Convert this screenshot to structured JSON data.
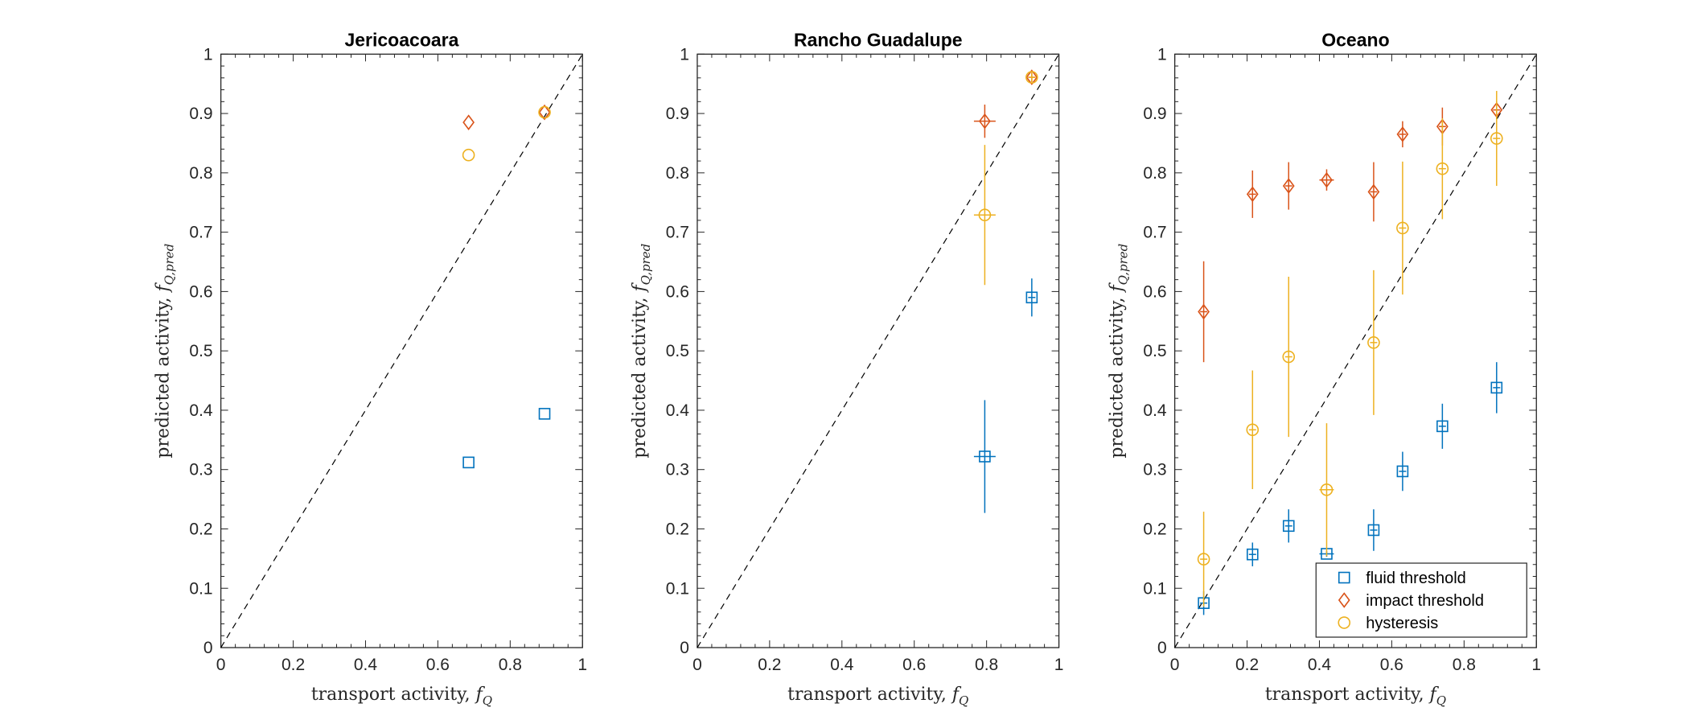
{
  "chart_data": [
    {
      "type": "scatter",
      "title": "Jericoacoara",
      "xlabel": "transport activity, f_Q",
      "ylabel": "predicted activity, f_Q,pred",
      "xlim": [
        0,
        1
      ],
      "ylim": [
        0,
        1
      ],
      "xticks": [
        "0",
        "0.2",
        "0.4",
        "0.6",
        "0.8",
        "1"
      ],
      "yticks": [
        "0",
        "0.1",
        "0.2",
        "0.3",
        "0.4",
        "0.5",
        "0.6",
        "0.7",
        "0.8",
        "0.9",
        "1"
      ],
      "reference_line": "1:1 dashed",
      "series": [
        {
          "key": "fluid",
          "marker": "square",
          "color": "#0072BD",
          "points": [
            {
              "x": 0.685,
              "y": 0.312,
              "yerr": 0,
              "xerr": 0
            },
            {
              "x": 0.895,
              "y": 0.394,
              "yerr": 0,
              "xerr": 0
            }
          ]
        },
        {
          "key": "impact",
          "marker": "diamond",
          "color": "#D95319",
          "points": [
            {
              "x": 0.685,
              "y": 0.885,
              "yerr": 0,
              "xerr": 0
            },
            {
              "x": 0.895,
              "y": 0.902,
              "yerr": 0,
              "xerr": 0
            }
          ]
        },
        {
          "key": "hysteresis",
          "marker": "circle",
          "color": "#EDB120",
          "points": [
            {
              "x": 0.685,
              "y": 0.83,
              "yerr": 0,
              "xerr": 0
            },
            {
              "x": 0.895,
              "y": 0.902,
              "yerr": 0,
              "xerr": 0
            }
          ]
        }
      ]
    },
    {
      "type": "scatter",
      "title": "Rancho Guadalupe",
      "xlabel": "transport activity, f_Q",
      "ylabel": "predicted activity, f_Q,pred",
      "xlim": [
        0,
        1
      ],
      "ylim": [
        0,
        1
      ],
      "xticks": [
        "0",
        "0.2",
        "0.4",
        "0.6",
        "0.8",
        "1"
      ],
      "yticks": [
        "0",
        "0.1",
        "0.2",
        "0.3",
        "0.4",
        "0.5",
        "0.6",
        "0.7",
        "0.8",
        "0.9",
        "1"
      ],
      "reference_line": "1:1 dashed",
      "series": [
        {
          "key": "fluid",
          "marker": "square",
          "color": "#0072BD",
          "points": [
            {
              "x": 0.795,
              "y": 0.322,
              "yerr": 0.095,
              "xerr": 0.03
            },
            {
              "x": 0.925,
              "y": 0.59,
              "yerr": 0.032,
              "xerr": 0.01
            }
          ]
        },
        {
          "key": "impact",
          "marker": "diamond",
          "color": "#D95319",
          "points": [
            {
              "x": 0.795,
              "y": 0.887,
              "yerr": 0.028,
              "xerr": 0.03
            },
            {
              "x": 0.925,
              "y": 0.961,
              "yerr": 0.008,
              "xerr": 0.01
            }
          ]
        },
        {
          "key": "hysteresis",
          "marker": "circle",
          "color": "#EDB120",
          "points": [
            {
              "x": 0.795,
              "y": 0.729,
              "yerr": 0.118,
              "xerr": 0.03
            },
            {
              "x": 0.925,
              "y": 0.961,
              "yerr": 0.008,
              "xerr": 0.01
            }
          ]
        }
      ]
    },
    {
      "type": "scatter",
      "title": "Oceano",
      "xlabel": "transport activity, f_Q",
      "ylabel": "predicted activity, f_Q,pred",
      "xlim": [
        0,
        1
      ],
      "ylim": [
        0,
        1
      ],
      "xticks": [
        "0",
        "0.2",
        "0.4",
        "0.6",
        "0.8",
        "1"
      ],
      "yticks": [
        "0",
        "0.1",
        "0.2",
        "0.3",
        "0.4",
        "0.5",
        "0.6",
        "0.7",
        "0.8",
        "0.9",
        "1"
      ],
      "reference_line": "1:1 dashed",
      "legend_position": "bottom-right",
      "series": [
        {
          "key": "fluid",
          "marker": "square",
          "color": "#0072BD",
          "points": [
            {
              "x": 0.08,
              "y": 0.075,
              "yerr": 0.02,
              "xerr": 0.01
            },
            {
              "x": 0.215,
              "y": 0.157,
              "yerr": 0.02,
              "xerr": 0.01
            },
            {
              "x": 0.315,
              "y": 0.205,
              "yerr": 0.028,
              "xerr": 0.01
            },
            {
              "x": 0.42,
              "y": 0.158,
              "yerr": 0.005,
              "xerr": 0.02
            },
            {
              "x": 0.55,
              "y": 0.198,
              "yerr": 0.035,
              "xerr": 0.01
            },
            {
              "x": 0.63,
              "y": 0.297,
              "yerr": 0.033,
              "xerr": 0.01
            },
            {
              "x": 0.74,
              "y": 0.373,
              "yerr": 0.038,
              "xerr": 0.01
            },
            {
              "x": 0.89,
              "y": 0.438,
              "yerr": 0.043,
              "xerr": 0.01
            }
          ]
        },
        {
          "key": "impact",
          "marker": "diamond",
          "color": "#D95319",
          "points": [
            {
              "x": 0.08,
              "y": 0.566,
              "yerr": 0.085,
              "xerr": 0.01
            },
            {
              "x": 0.215,
              "y": 0.764,
              "yerr": 0.04,
              "xerr": 0.01
            },
            {
              "x": 0.315,
              "y": 0.778,
              "yerr": 0.04,
              "xerr": 0.01
            },
            {
              "x": 0.42,
              "y": 0.788,
              "yerr": 0.018,
              "xerr": 0.02
            },
            {
              "x": 0.55,
              "y": 0.768,
              "yerr": 0.05,
              "xerr": 0.01
            },
            {
              "x": 0.63,
              "y": 0.865,
              "yerr": 0.022,
              "xerr": 0.01
            },
            {
              "x": 0.74,
              "y": 0.878,
              "yerr": 0.032,
              "xerr": 0.01
            },
            {
              "x": 0.89,
              "y": 0.906,
              "yerr": 0.015,
              "xerr": 0.01
            }
          ]
        },
        {
          "key": "hysteresis",
          "marker": "circle",
          "color": "#EDB120",
          "points": [
            {
              "x": 0.08,
              "y": 0.149,
              "yerr": 0.08,
              "xerr": 0.01
            },
            {
              "x": 0.215,
              "y": 0.367,
              "yerr": 0.1,
              "xerr": 0.01
            },
            {
              "x": 0.315,
              "y": 0.49,
              "yerr": 0.135,
              "xerr": 0.01
            },
            {
              "x": 0.42,
              "y": 0.266,
              "yerr": 0.112,
              "xerr": 0.02
            },
            {
              "x": 0.55,
              "y": 0.514,
              "yerr": 0.122,
              "xerr": 0.01
            },
            {
              "x": 0.63,
              "y": 0.707,
              "yerr": 0.112,
              "xerr": 0.01
            },
            {
              "x": 0.74,
              "y": 0.807,
              "yerr": 0.085,
              "xerr": 0.01
            },
            {
              "x": 0.89,
              "y": 0.858,
              "yerr": 0.08,
              "xerr": 0.01
            }
          ]
        }
      ]
    }
  ],
  "legend": {
    "entries": [
      {
        "key": "fluid",
        "label": "fluid threshold",
        "marker": "square",
        "color": "#0072BD"
      },
      {
        "key": "impact",
        "label": "impact threshold",
        "marker": "diamond",
        "color": "#D95319"
      },
      {
        "key": "hysteresis",
        "label": "hysteresis",
        "marker": "circle",
        "color": "#EDB120"
      }
    ]
  },
  "axis_text": {
    "x_main": "transport activity, ",
    "x_var": "f",
    "x_sub": "Q",
    "y_main": "predicted activity, ",
    "y_var": "f",
    "y_sub": "Q,pred"
  }
}
